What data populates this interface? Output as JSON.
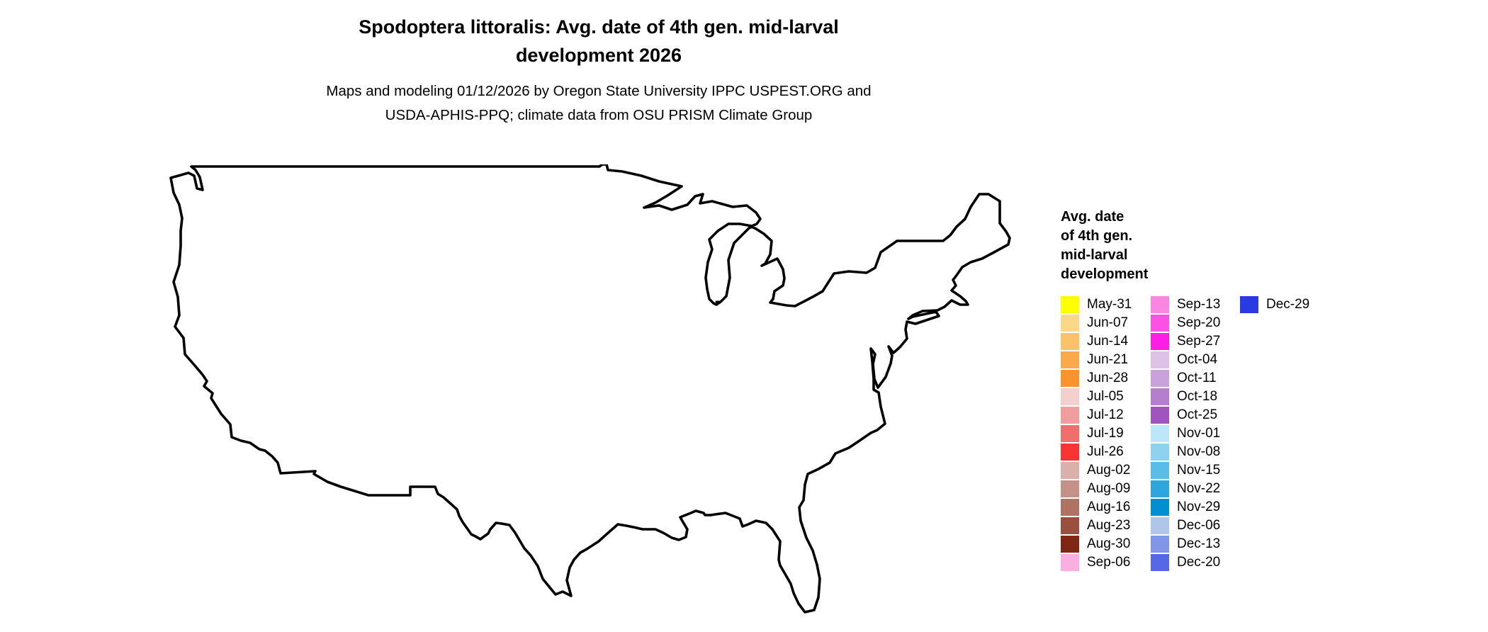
{
  "title": {
    "line1": "Spodoptera littoralis: Avg. date of 4th gen. mid-larval",
    "line2": "development 2026"
  },
  "subtitle": {
    "line1": "Maps and modeling 01/12/2026 by Oregon State University IPPC USPEST.ORG and",
    "line2": "USDA-APHIS-PPQ; climate data from OSU PRISM Climate Group"
  },
  "legend": {
    "title_lines": [
      "Avg. date",
      "of 4th gen.",
      "mid-larval",
      "development"
    ],
    "columns": [
      [
        {
          "label": "May-31",
          "color": "#FFFF00"
        },
        {
          "label": "Jun-07",
          "color": "#FBD78A"
        },
        {
          "label": "Jun-14",
          "color": "#FBC26B"
        },
        {
          "label": "Jun-21",
          "color": "#FAAA4D"
        },
        {
          "label": "Jun-28",
          "color": "#F9932D"
        },
        {
          "label": "Jul-05",
          "color": "#F3CFCE"
        },
        {
          "label": "Jul-12",
          "color": "#EF9E9D"
        },
        {
          "label": "Jul-19",
          "color": "#F06F6C"
        },
        {
          "label": "Jul-26",
          "color": "#FA3432"
        },
        {
          "label": "Aug-02",
          "color": "#DCB0AA"
        },
        {
          "label": "Aug-09",
          "color": "#C49087"
        },
        {
          "label": "Aug-16",
          "color": "#B07263"
        },
        {
          "label": "Aug-23",
          "color": "#9A4F3F"
        },
        {
          "label": "Aug-30",
          "color": "#802615"
        },
        {
          "label": "Sep-06",
          "color": "#FBAFE0"
        }
      ],
      [
        {
          "label": "Sep-13",
          "color": "#FA86E1"
        },
        {
          "label": "Sep-20",
          "color": "#FB51E5"
        },
        {
          "label": "Sep-27",
          "color": "#FC1EE4"
        },
        {
          "label": "Oct-04",
          "color": "#DDC2E8"
        },
        {
          "label": "Oct-11",
          "color": "#C9A1DB"
        },
        {
          "label": "Oct-18",
          "color": "#B57FCE"
        },
        {
          "label": "Oct-25",
          "color": "#A055BE"
        },
        {
          "label": "Nov-01",
          "color": "#BDE6FA"
        },
        {
          "label": "Nov-08",
          "color": "#8FD2F0"
        },
        {
          "label": "Nov-15",
          "color": "#5CBCE8"
        },
        {
          "label": "Nov-22",
          "color": "#2FA5DE"
        },
        {
          "label": "Nov-29",
          "color": "#0090D2"
        },
        {
          "label": "Dec-06",
          "color": "#AFC6E8"
        },
        {
          "label": "Dec-13",
          "color": "#8296E8"
        },
        {
          "label": "Dec-20",
          "color": "#5668E6"
        }
      ],
      [
        {
          "label": "Dec-29",
          "color": "#2B3AE1"
        }
      ]
    ]
  },
  "map": {
    "border_color": "#000000",
    "no_data_color": "#FFFFFF"
  }
}
